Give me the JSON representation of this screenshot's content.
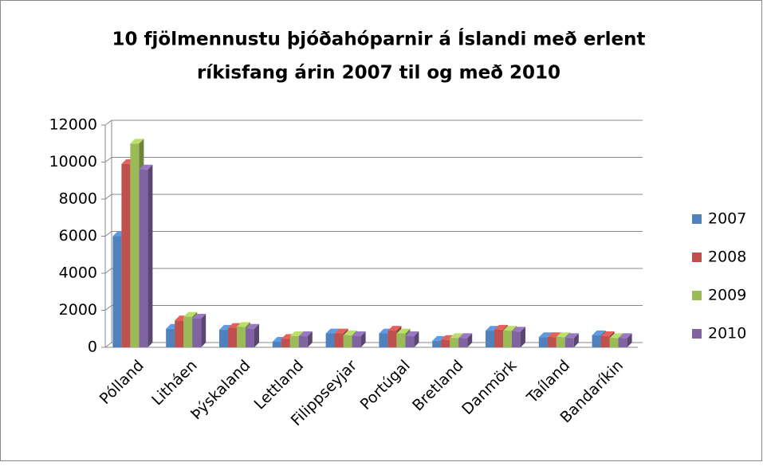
{
  "chart_data": {
    "type": "bar3d",
    "title": [
      "10 fjölmennustu þjóðahóparnir á Íslandi með erlent",
      "ríkisfang árin 2007 til og með 2010"
    ],
    "categories": [
      "Pólland",
      "Litháen",
      "Þýskaland",
      "Lettland",
      "Filippseyjar",
      "Portúgal",
      "Bretland",
      "Danmörk",
      "Taíland",
      "Bandaríkin"
    ],
    "series": [
      {
        "name": "2007",
        "color": "#4f81bd",
        "values": [
          6000,
          1000,
          950,
          300,
          750,
          750,
          350,
          900,
          550,
          650
        ]
      },
      {
        "name": "2008",
        "color": "#c0504d",
        "values": [
          9900,
          1450,
          1050,
          450,
          750,
          900,
          400,
          950,
          550,
          600
        ]
      },
      {
        "name": "2009",
        "color": "#9bbb59",
        "values": [
          11000,
          1650,
          1100,
          600,
          650,
          750,
          500,
          900,
          550,
          500
        ]
      },
      {
        "name": "2010",
        "color": "#8064a2",
        "values": [
          9600,
          1550,
          1000,
          600,
          600,
          600,
          500,
          850,
          500,
          500
        ]
      }
    ],
    "ylim": [
      0,
      12000
    ],
    "yticks": [
      0,
      2000,
      4000,
      6000,
      8000,
      10000,
      12000
    ],
    "grid": true,
    "legend": "right"
  }
}
